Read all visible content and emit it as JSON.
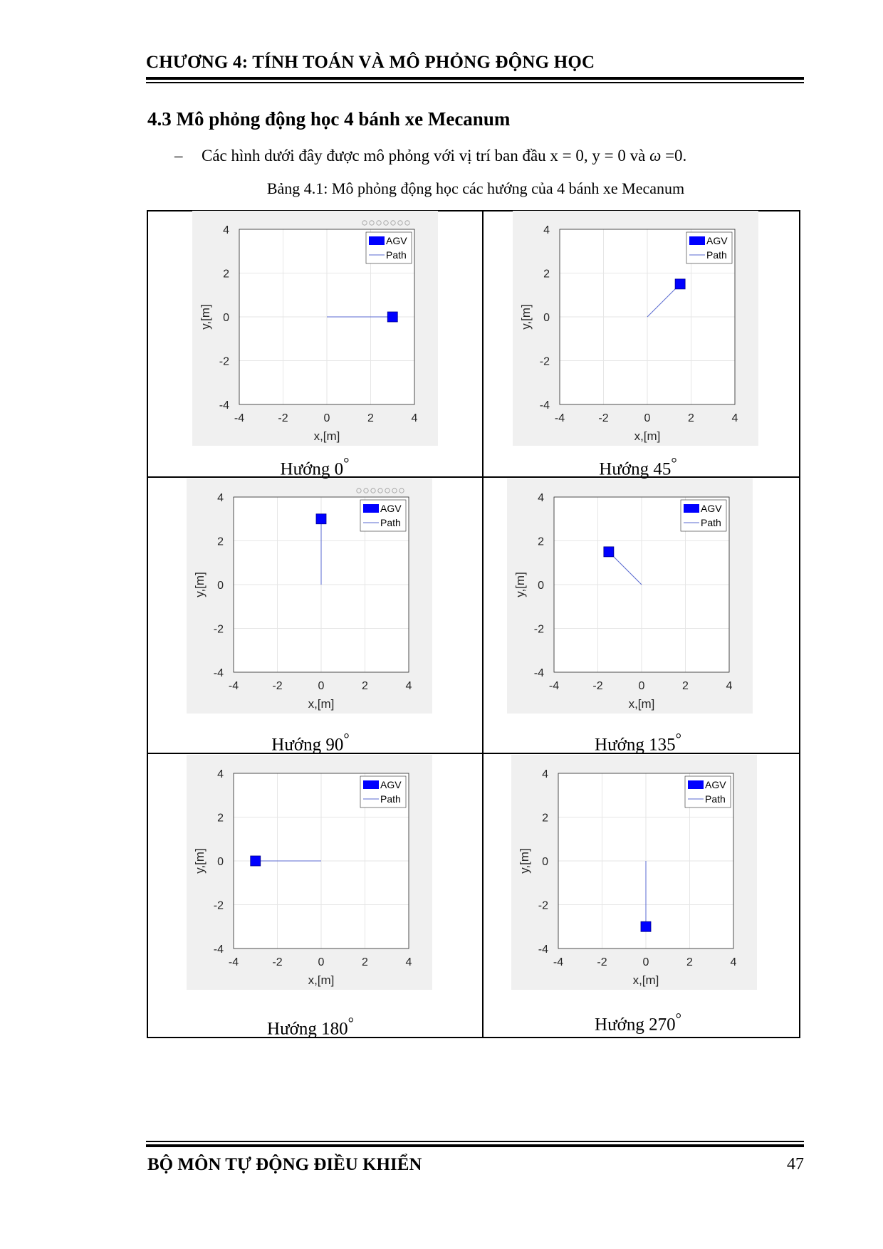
{
  "header": {
    "chapter_title": "CHƯƠNG 4: TÍNH TOÁN VÀ MÔ PHỎNG ĐỘNG HỌC"
  },
  "section": {
    "title": "4.3 Mô phỏng động học 4 bánh xe Mecanum",
    "bullet_dash": "–",
    "bullet_text": "Các hình dưới đây được mô phỏng với vị trí ban đầu x = 0, y = 0 và",
    "omega_symbol": "ω",
    "bullet_tail": " =0.",
    "table_caption": "Bảng 4.1: Mô phỏng động học các hướng của 4 bánh xe Mecanum"
  },
  "plot_common": {
    "xlabel": "x,[m]",
    "ylabel": "y,[m]",
    "ticks": [
      "-4",
      "-2",
      "0",
      "2",
      "4"
    ],
    "legend_agv": "AGV",
    "legend_path": "Path",
    "agv_color": "#0000ff",
    "path_color": "#5a6ad0",
    "panel_bg": "#f0f0f0",
    "grid_color": "#e6e6e6"
  },
  "chart_data": [
    {
      "type": "line",
      "label": "Hướng 0",
      "degree_mark": "°",
      "xlim": [
        -4,
        4
      ],
      "ylim": [
        -4,
        4
      ],
      "grid": true,
      "legend": "top-right",
      "path": {
        "x": [
          0,
          3
        ],
        "y": [
          0,
          0
        ]
      },
      "agv": {
        "x": 3,
        "y": 0
      },
      "toolbar": true
    },
    {
      "type": "line",
      "label": "Hướng 45",
      "degree_mark": "°",
      "xlim": [
        -4,
        4
      ],
      "ylim": [
        -4,
        4
      ],
      "grid": true,
      "legend": "top-right",
      "path": {
        "x": [
          0,
          1.5
        ],
        "y": [
          0,
          1.5
        ]
      },
      "agv": {
        "x": 1.5,
        "y": 1.5
      },
      "toolbar": false
    },
    {
      "type": "line",
      "label": "Hướng 90",
      "degree_mark": "°",
      "xlim": [
        -4,
        4
      ],
      "ylim": [
        -4,
        4
      ],
      "grid": true,
      "legend": "top-right",
      "path": {
        "x": [
          0,
          0
        ],
        "y": [
          0,
          3
        ]
      },
      "agv": {
        "x": 0,
        "y": 3
      },
      "toolbar": true
    },
    {
      "type": "line",
      "label": "Hướng 135",
      "degree_mark": "°",
      "xlim": [
        -4,
        4
      ],
      "ylim": [
        -4,
        4
      ],
      "grid": true,
      "legend": "top-right",
      "path": {
        "x": [
          0,
          -1.5
        ],
        "y": [
          0,
          1.5
        ]
      },
      "agv": {
        "x": -1.5,
        "y": 1.5
      },
      "toolbar": false
    },
    {
      "type": "line",
      "label": "Hướng 180",
      "degree_mark": "°",
      "xlim": [
        -4,
        4
      ],
      "ylim": [
        -4,
        4
      ],
      "grid": true,
      "legend": "top-right",
      "path": {
        "x": [
          0,
          -3
        ],
        "y": [
          0,
          0
        ]
      },
      "agv": {
        "x": -3,
        "y": 0
      },
      "toolbar": false
    },
    {
      "type": "line",
      "label": "Hướng 270",
      "degree_mark": "°",
      "xlim": [
        -4,
        4
      ],
      "ylim": [
        -4,
        4
      ],
      "grid": true,
      "legend": "top-right",
      "path": {
        "x": [
          0,
          0
        ],
        "y": [
          0,
          -3
        ]
      },
      "agv": {
        "x": 0,
        "y": -3
      },
      "toolbar": false
    }
  ],
  "footer": {
    "department": "BỘ MÔN TỰ ĐỘNG ĐIỀU KHIỂN",
    "page_number": "47"
  }
}
